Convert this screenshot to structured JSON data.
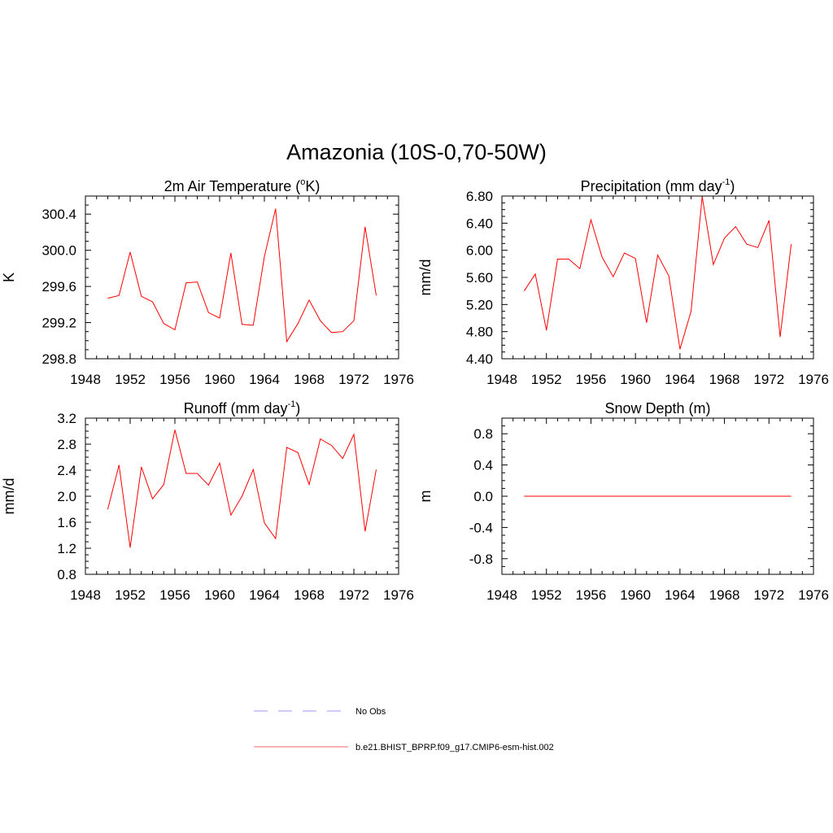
{
  "title": "Amazonia (10S-0,70-50W)",
  "colors": {
    "series": "#ff0000",
    "obs": "#9999ff",
    "axis": "#000000"
  },
  "legend": [
    {
      "label": "No Obs",
      "style": "dashed",
      "color": "#9999ff"
    },
    {
      "label": "b.e21.BHIST_BPRP.f09_g17.CMIP6-esm-hist.002",
      "style": "solid",
      "color": "#ff6666"
    }
  ],
  "chart_data": [
    {
      "type": "line",
      "title": "2m Air Temperature (",
      "title_sup": "o",
      "title_after_sup": "K)",
      "ylabel": "K",
      "xlim": [
        1948,
        1976
      ],
      "ylim": [
        298.8,
        300.6
      ],
      "xticks": [
        1948,
        1952,
        1956,
        1960,
        1964,
        1968,
        1972,
        1976
      ],
      "yticks": [
        298.8,
        299.2,
        299.6,
        300.0,
        300.4
      ],
      "ytick_labels": [
        "298.8",
        "299.2",
        "299.6",
        "300.0",
        "300.4"
      ],
      "x": [
        1950,
        1951,
        1952,
        1953,
        1954,
        1955,
        1956,
        1957,
        1958,
        1959,
        1960,
        1961,
        1962,
        1963,
        1964,
        1965,
        1966,
        1967,
        1968,
        1969,
        1970,
        1971,
        1972,
        1973,
        1974
      ],
      "series": [
        {
          "values": [
            299.47,
            299.5,
            299.98,
            299.49,
            299.43,
            299.19,
            299.12,
            299.64,
            299.65,
            299.31,
            299.25,
            299.97,
            299.18,
            299.17,
            299.93,
            300.46,
            298.99,
            299.19,
            299.45,
            299.22,
            299.09,
            299.1,
            299.22,
            300.26,
            299.5
          ]
        }
      ]
    },
    {
      "type": "line",
      "title": "Precipitation (mm day",
      "title_sup": "-1",
      "title_after_sup": ")",
      "ylabel": "mm/d",
      "xlim": [
        1948,
        1976
      ],
      "ylim": [
        4.4,
        6.8
      ],
      "xticks": [
        1948,
        1952,
        1956,
        1960,
        1964,
        1968,
        1972,
        1976
      ],
      "yticks": [
        4.4,
        4.8,
        5.2,
        5.6,
        6.0,
        6.4,
        6.8
      ],
      "ytick_labels": [
        "4.40",
        "4.80",
        "5.20",
        "5.60",
        "6.00",
        "6.40",
        "6.80"
      ],
      "x": [
        1950,
        1951,
        1952,
        1953,
        1954,
        1955,
        1956,
        1957,
        1958,
        1959,
        1960,
        1961,
        1962,
        1963,
        1964,
        1965,
        1966,
        1967,
        1968,
        1969,
        1970,
        1971,
        1972,
        1973,
        1974
      ],
      "series": [
        {
          "values": [
            5.4,
            5.65,
            4.82,
            5.87,
            5.87,
            5.73,
            6.45,
            5.9,
            5.61,
            5.96,
            5.88,
            4.93,
            5.93,
            5.62,
            4.54,
            5.1,
            6.79,
            5.79,
            6.18,
            6.35,
            6.09,
            6.04,
            6.44,
            4.72,
            6.09
          ]
        }
      ]
    },
    {
      "type": "line",
      "title": "Runoff (mm day",
      "title_sup": "-1",
      "title_after_sup": ")",
      "ylabel": "mm/d",
      "xlim": [
        1948,
        1976
      ],
      "ylim": [
        0.8,
        3.2
      ],
      "xticks": [
        1948,
        1952,
        1956,
        1960,
        1964,
        1968,
        1972,
        1976
      ],
      "yticks": [
        0.8,
        1.2,
        1.6,
        2.0,
        2.4,
        2.8,
        3.2
      ],
      "ytick_labels": [
        "0.8",
        "1.2",
        "1.6",
        "2.0",
        "2.4",
        "2.8",
        "3.2"
      ],
      "x": [
        1950,
        1951,
        1952,
        1953,
        1954,
        1955,
        1956,
        1957,
        1958,
        1959,
        1960,
        1961,
        1962,
        1963,
        1964,
        1965,
        1966,
        1967,
        1968,
        1969,
        1970,
        1971,
        1972,
        1973,
        1974
      ],
      "series": [
        {
          "values": [
            1.8,
            2.48,
            1.21,
            2.45,
            1.96,
            2.18,
            3.02,
            2.35,
            2.35,
            2.17,
            2.51,
            1.71,
            2.0,
            2.41,
            1.59,
            1.35,
            2.75,
            2.67,
            2.18,
            2.88,
            2.78,
            2.58,
            2.95,
            1.46,
            2.41
          ]
        }
      ]
    },
    {
      "type": "line",
      "title": "Snow Depth (m)",
      "title_sup": "",
      "title_after_sup": "",
      "ylabel": "m",
      "xlim": [
        1948,
        1976
      ],
      "ylim": [
        -1.0,
        1.0
      ],
      "xticks": [
        1948,
        1952,
        1956,
        1960,
        1964,
        1968,
        1972,
        1976
      ],
      "yticks": [
        -0.8,
        -0.4,
        0.0,
        0.4,
        0.8
      ],
      "ytick_labels": [
        "-0.8",
        "-0.4",
        "0.0",
        "0.4",
        "0.8"
      ],
      "x": [
        1950,
        1974
      ],
      "series": [
        {
          "values": [
            0.0,
            0.0
          ]
        }
      ]
    }
  ]
}
